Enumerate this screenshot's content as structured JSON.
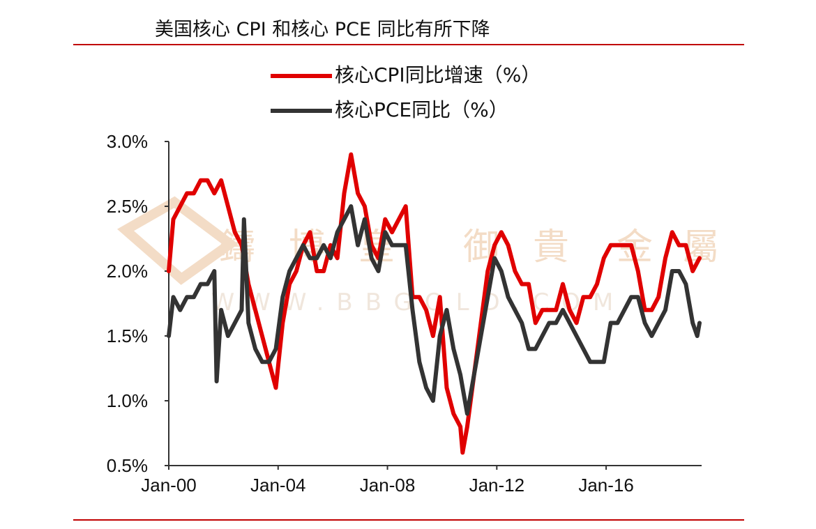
{
  "page": {
    "title": "美国核心 CPI 和核心 PCE 同比有所下降"
  },
  "colors": {
    "accent_rule": "#c00000",
    "cpi": "#e00000",
    "pce": "#333333",
    "watermark": "#f3dcc6"
  },
  "watermark": {
    "chars": [
      "鑄",
      "博",
      "皇",
      "御",
      "貴",
      "金",
      "屬"
    ],
    "url": "WWW.BBGOLD.COM"
  },
  "chart_data": {
    "type": "line",
    "title": "",
    "xlabel": "",
    "ylabel": "",
    "x_start": "2000-01",
    "x_end": "2019-06",
    "xticks": [
      "Jan-00",
      "Jan-04",
      "Jan-08",
      "Jan-12",
      "Jan-16"
    ],
    "yticks": [
      "0.5%",
      "1.0%",
      "1.5%",
      "2.0%",
      "2.5%",
      "3.0%"
    ],
    "ylim": [
      0.5,
      3.0
    ],
    "legend_position": "top",
    "grid": false,
    "series": [
      {
        "name": "核心CPI同比增速（%）",
        "color": "#e00000",
        "points": [
          [
            "2000-01",
            2.0
          ],
          [
            "2000-03",
            2.4
          ],
          [
            "2000-06",
            2.5
          ],
          [
            "2000-09",
            2.6
          ],
          [
            "2000-12",
            2.6
          ],
          [
            "2001-03",
            2.7
          ],
          [
            "2001-06",
            2.7
          ],
          [
            "2001-09",
            2.6
          ],
          [
            "2001-12",
            2.7
          ],
          [
            "2002-03",
            2.5
          ],
          [
            "2002-06",
            2.3
          ],
          [
            "2002-09",
            2.2
          ],
          [
            "2002-12",
            1.9
          ],
          [
            "2003-03",
            1.7
          ],
          [
            "2003-06",
            1.5
          ],
          [
            "2003-09",
            1.3
          ],
          [
            "2003-12",
            1.1
          ],
          [
            "2004-03",
            1.6
          ],
          [
            "2004-06",
            1.9
          ],
          [
            "2004-09",
            2.0
          ],
          [
            "2004-12",
            2.2
          ],
          [
            "2005-03",
            2.3
          ],
          [
            "2005-06",
            2.0
          ],
          [
            "2005-09",
            2.0
          ],
          [
            "2005-12",
            2.2
          ],
          [
            "2006-03",
            2.1
          ],
          [
            "2006-06",
            2.6
          ],
          [
            "2006-09",
            2.9
          ],
          [
            "2006-12",
            2.6
          ],
          [
            "2007-03",
            2.5
          ],
          [
            "2007-06",
            2.2
          ],
          [
            "2007-09",
            2.1
          ],
          [
            "2007-12",
            2.4
          ],
          [
            "2008-03",
            2.3
          ],
          [
            "2008-06",
            2.4
          ],
          [
            "2008-09",
            2.5
          ],
          [
            "2008-12",
            1.8
          ],
          [
            "2009-03",
            1.8
          ],
          [
            "2009-06",
            1.7
          ],
          [
            "2009-09",
            1.5
          ],
          [
            "2009-12",
            1.8
          ],
          [
            "2010-03",
            1.1
          ],
          [
            "2010-06",
            0.9
          ],
          [
            "2010-09",
            0.8
          ],
          [
            "2010-10",
            0.6
          ],
          [
            "2010-12",
            0.8
          ],
          [
            "2011-03",
            1.2
          ],
          [
            "2011-06",
            1.6
          ],
          [
            "2011-09",
            2.0
          ],
          [
            "2011-12",
            2.2
          ],
          [
            "2012-03",
            2.3
          ],
          [
            "2012-06",
            2.2
          ],
          [
            "2012-09",
            2.0
          ],
          [
            "2012-12",
            1.9
          ],
          [
            "2013-03",
            1.9
          ],
          [
            "2013-06",
            1.6
          ],
          [
            "2013-09",
            1.7
          ],
          [
            "2013-12",
            1.7
          ],
          [
            "2014-03",
            1.7
          ],
          [
            "2014-06",
            1.9
          ],
          [
            "2014-09",
            1.7
          ],
          [
            "2014-12",
            1.6
          ],
          [
            "2015-03",
            1.8
          ],
          [
            "2015-06",
            1.8
          ],
          [
            "2015-09",
            1.9
          ],
          [
            "2015-12",
            2.1
          ],
          [
            "2016-03",
            2.2
          ],
          [
            "2016-06",
            2.2
          ],
          [
            "2016-09",
            2.2
          ],
          [
            "2016-12",
            2.2
          ],
          [
            "2017-03",
            2.0
          ],
          [
            "2017-06",
            1.7
          ],
          [
            "2017-09",
            1.7
          ],
          [
            "2017-12",
            1.8
          ],
          [
            "2018-03",
            2.1
          ],
          [
            "2018-06",
            2.3
          ],
          [
            "2018-09",
            2.2
          ],
          [
            "2018-12",
            2.2
          ],
          [
            "2019-03",
            2.0
          ],
          [
            "2019-06",
            2.1
          ]
        ]
      },
      {
        "name": "核心PCE同比（%）",
        "color": "#333333",
        "points": [
          [
            "2000-01",
            1.5
          ],
          [
            "2000-03",
            1.8
          ],
          [
            "2000-06",
            1.7
          ],
          [
            "2000-09",
            1.8
          ],
          [
            "2000-12",
            1.8
          ],
          [
            "2001-03",
            1.9
          ],
          [
            "2001-06",
            1.9
          ],
          [
            "2001-09",
            2.0
          ],
          [
            "2001-10",
            1.15
          ],
          [
            "2001-12",
            1.7
          ],
          [
            "2002-03",
            1.5
          ],
          [
            "2002-06",
            1.6
          ],
          [
            "2002-09",
            1.7
          ],
          [
            "2002-10",
            2.4
          ],
          [
            "2002-12",
            1.6
          ],
          [
            "2003-03",
            1.4
          ],
          [
            "2003-06",
            1.3
          ],
          [
            "2003-09",
            1.3
          ],
          [
            "2003-12",
            1.4
          ],
          [
            "2004-03",
            1.8
          ],
          [
            "2004-06",
            2.0
          ],
          [
            "2004-09",
            2.1
          ],
          [
            "2004-12",
            2.2
          ],
          [
            "2005-03",
            2.1
          ],
          [
            "2005-06",
            2.1
          ],
          [
            "2005-09",
            2.2
          ],
          [
            "2005-12",
            2.1
          ],
          [
            "2006-03",
            2.3
          ],
          [
            "2006-06",
            2.4
          ],
          [
            "2006-09",
            2.5
          ],
          [
            "2006-12",
            2.2
          ],
          [
            "2007-03",
            2.4
          ],
          [
            "2007-06",
            2.1
          ],
          [
            "2007-09",
            2.0
          ],
          [
            "2007-12",
            2.3
          ],
          [
            "2008-03",
            2.2
          ],
          [
            "2008-06",
            2.2
          ],
          [
            "2008-09",
            2.2
          ],
          [
            "2008-12",
            1.7
          ],
          [
            "2009-03",
            1.3
          ],
          [
            "2009-06",
            1.1
          ],
          [
            "2009-09",
            1.0
          ],
          [
            "2009-12",
            1.5
          ],
          [
            "2010-03",
            1.7
          ],
          [
            "2010-06",
            1.4
          ],
          [
            "2010-09",
            1.2
          ],
          [
            "2010-12",
            0.9
          ],
          [
            "2011-03",
            1.2
          ],
          [
            "2011-06",
            1.5
          ],
          [
            "2011-09",
            1.8
          ],
          [
            "2011-12",
            2.1
          ],
          [
            "2012-03",
            2.0
          ],
          [
            "2012-06",
            1.8
          ],
          [
            "2012-09",
            1.7
          ],
          [
            "2012-12",
            1.6
          ],
          [
            "2013-03",
            1.4
          ],
          [
            "2013-06",
            1.4
          ],
          [
            "2013-09",
            1.5
          ],
          [
            "2013-12",
            1.6
          ],
          [
            "2014-03",
            1.6
          ],
          [
            "2014-06",
            1.7
          ],
          [
            "2014-09",
            1.6
          ],
          [
            "2014-12",
            1.5
          ],
          [
            "2015-03",
            1.4
          ],
          [
            "2015-06",
            1.3
          ],
          [
            "2015-09",
            1.3
          ],
          [
            "2015-12",
            1.3
          ],
          [
            "2016-03",
            1.6
          ],
          [
            "2016-06",
            1.6
          ],
          [
            "2016-09",
            1.7
          ],
          [
            "2016-12",
            1.8
          ],
          [
            "2017-03",
            1.8
          ],
          [
            "2017-06",
            1.6
          ],
          [
            "2017-09",
            1.5
          ],
          [
            "2017-12",
            1.6
          ],
          [
            "2018-03",
            1.7
          ],
          [
            "2018-06",
            2.0
          ],
          [
            "2018-09",
            2.0
          ],
          [
            "2018-12",
            1.9
          ],
          [
            "2019-03",
            1.6
          ],
          [
            "2019-05",
            1.5
          ],
          [
            "2019-06",
            1.6
          ]
        ]
      }
    ]
  }
}
